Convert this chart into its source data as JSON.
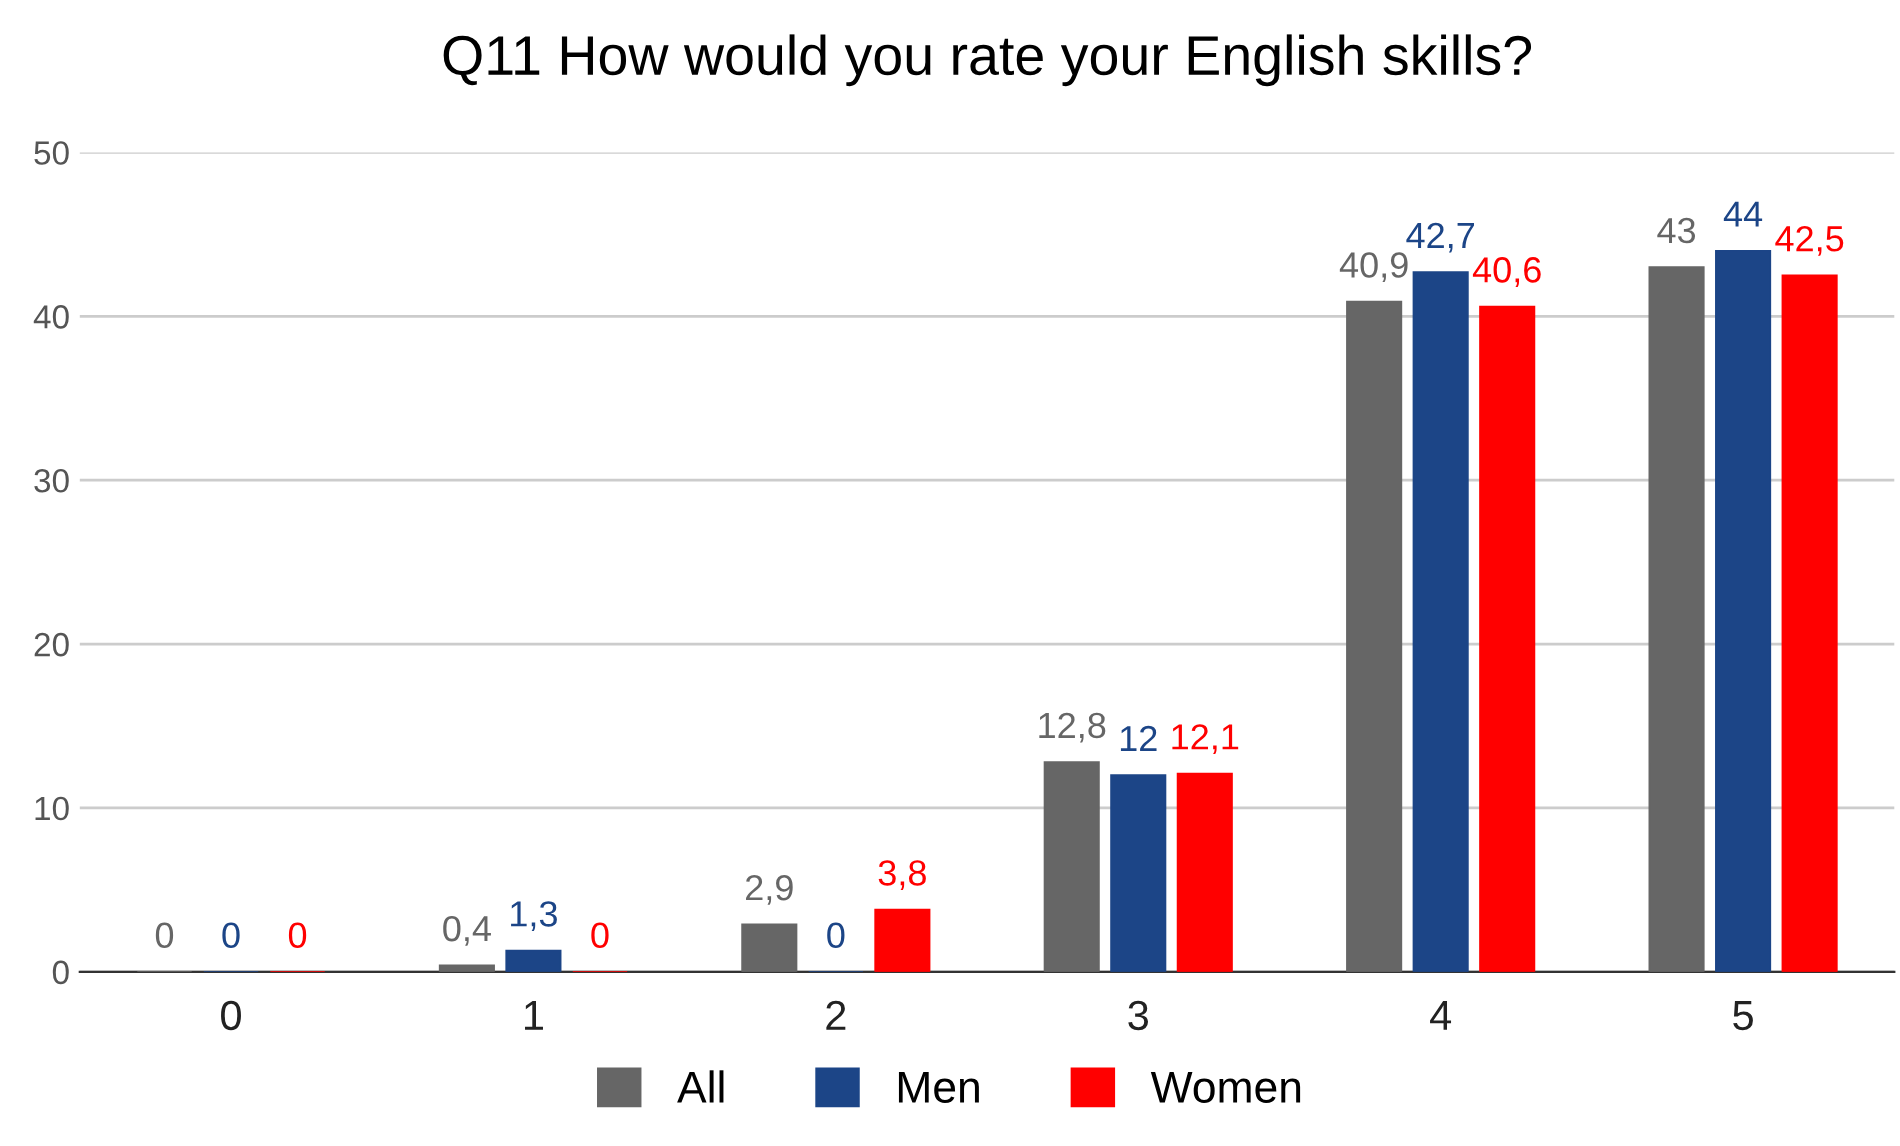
{
  "chart_data": {
    "type": "bar",
    "title": "Q11 How would you rate your English skills?",
    "categories": [
      "0",
      "1",
      "2",
      "3",
      "4",
      "5"
    ],
    "series": [
      {
        "name": "All",
        "color": "#666666",
        "values": [
          0,
          0.4,
          2.9,
          12.8,
          40.9,
          43
        ],
        "value_labels": [
          "0",
          "0,4",
          "2,9",
          "12,8",
          "40,9",
          "43"
        ]
      },
      {
        "name": "Men",
        "color": "#1c4587",
        "values": [
          0,
          1.3,
          0,
          12,
          42.7,
          44
        ],
        "value_labels": [
          "0",
          "1,3",
          "0",
          "12",
          "42,7",
          "44"
        ]
      },
      {
        "name": "Women",
        "color": "#ff0000",
        "values": [
          0,
          0,
          3.8,
          12.1,
          40.6,
          42.5
        ],
        "value_labels": [
          "0",
          "0",
          "3,8",
          "12,1",
          "40,6",
          "42,5"
        ]
      }
    ],
    "ylim": [
      0,
      50
    ],
    "yticks": [
      0,
      10,
      20,
      30,
      40,
      50
    ],
    "grid": "y",
    "legend": "bottom"
  }
}
